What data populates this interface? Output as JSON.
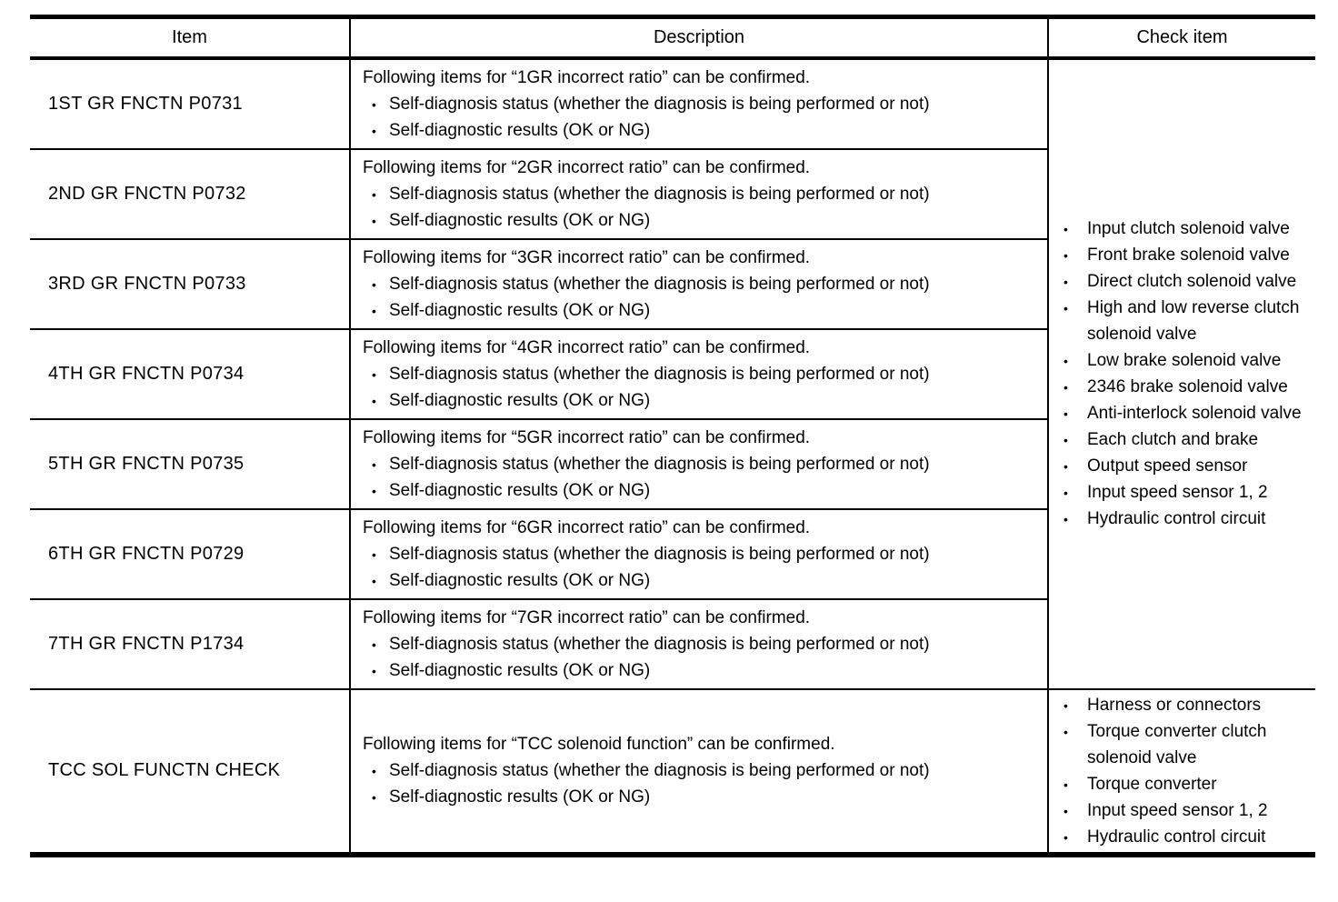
{
  "glyphs": {
    "bullet": "•"
  },
  "table": {
    "columns": [
      {
        "label": "Item"
      },
      {
        "label": "Description"
      },
      {
        "label": "Check item"
      }
    ],
    "rows": [
      {
        "item": "1ST GR FNCTN P0731",
        "description_intro": "Following items for “1GR incorrect ratio” can be confirmed.",
        "description_bullets": [
          "Self-diagnosis status (whether the diagnosis is being performed or not)",
          "Self-diagnostic results (OK or NG)"
        ]
      },
      {
        "item": "2ND GR FNCTN P0732",
        "description_intro": "Following items for “2GR incorrect ratio” can be confirmed.",
        "description_bullets": [
          "Self-diagnosis status (whether the diagnosis is being performed or not)",
          "Self-diagnostic results (OK or NG)"
        ]
      },
      {
        "item": "3RD GR FNCTN P0733",
        "description_intro": "Following items for “3GR incorrect ratio” can be confirmed.",
        "description_bullets": [
          "Self-diagnosis status (whether the diagnosis is being performed or not)",
          "Self-diagnostic results (OK or NG)"
        ]
      },
      {
        "item": "4TH GR FNCTN P0734",
        "description_intro": "Following items for “4GR incorrect ratio” can be confirmed.",
        "description_bullets": [
          "Self-diagnosis status (whether the diagnosis is being performed or not)",
          "Self-diagnostic results (OK or NG)"
        ]
      },
      {
        "item": "5TH GR FNCTN P0735",
        "description_intro": "Following items for “5GR incorrect ratio” can be confirmed.",
        "description_bullets": [
          "Self-diagnosis status (whether the diagnosis is being performed or not)",
          "Self-diagnostic results (OK or NG)"
        ]
      },
      {
        "item": "6TH GR FNCTN P0729",
        "description_intro": "Following items for “6GR incorrect ratio” can be confirmed.",
        "description_bullets": [
          "Self-diagnosis status (whether the diagnosis is being performed or not)",
          "Self-diagnostic results (OK or NG)"
        ]
      },
      {
        "item": "7TH GR FNCTN P1734",
        "description_intro": "Following items for “7GR incorrect ratio” can be confirmed.",
        "description_bullets": [
          "Self-diagnosis status (whether the diagnosis is being performed or not)",
          "Self-diagnostic results (OK or NG)"
        ]
      },
      {
        "item": "TCC SOL FUNCTN CHECK",
        "description_intro": "Following items for “TCC solenoid function” can be confirmed.",
        "description_bullets": [
          "Self-diagnosis status (whether the diagnosis is being performed or not)",
          "Self-diagnostic results (OK or NG)"
        ]
      }
    ],
    "check_item_groups": [
      {
        "items": [
          "Input clutch solenoid valve",
          "Front brake solenoid valve",
          "Direct clutch solenoid valve",
          "High and low reverse clutch solenoid valve",
          "Low brake solenoid valve",
          "2346 brake solenoid valve",
          "Anti-interlock solenoid valve",
          "Each clutch and brake",
          "Output speed sensor",
          "Input speed sensor 1, 2",
          "Hydraulic control circuit"
        ]
      },
      {
        "items": [
          "Harness or connectors",
          "Torque converter clutch solenoid valve",
          "Torque converter",
          "Input speed sensor 1, 2",
          "Hydraulic control circuit"
        ]
      }
    ]
  }
}
